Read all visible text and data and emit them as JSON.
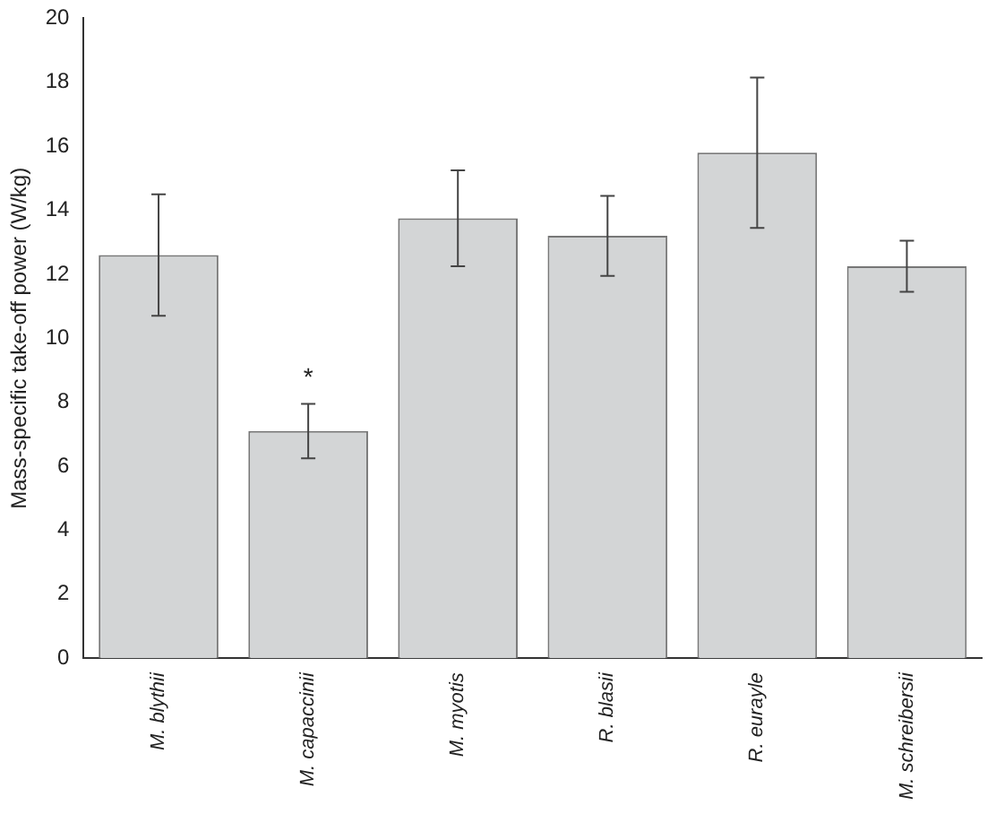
{
  "chart_data": {
    "type": "bar",
    "ylabel": "Mass-specific take-off power (W/kg)",
    "categories": [
      "M. blythii",
      "M. capaccinii",
      "M. myotis",
      "R. blasii",
      "R. eurayle",
      "M. schreibersii"
    ],
    "values": [
      12.6,
      7.1,
      13.75,
      13.2,
      15.8,
      12.25
    ],
    "errors": [
      1.9,
      0.85,
      1.5,
      1.25,
      2.35,
      0.8
    ],
    "color": "#d3d5d6",
    "ylim": [
      0,
      20
    ],
    "yticks": [
      0,
      2,
      4,
      6,
      8,
      10,
      12,
      14,
      16,
      18,
      20
    ],
    "grid": false,
    "legend": false,
    "annotations": [
      "*"
    ]
  }
}
